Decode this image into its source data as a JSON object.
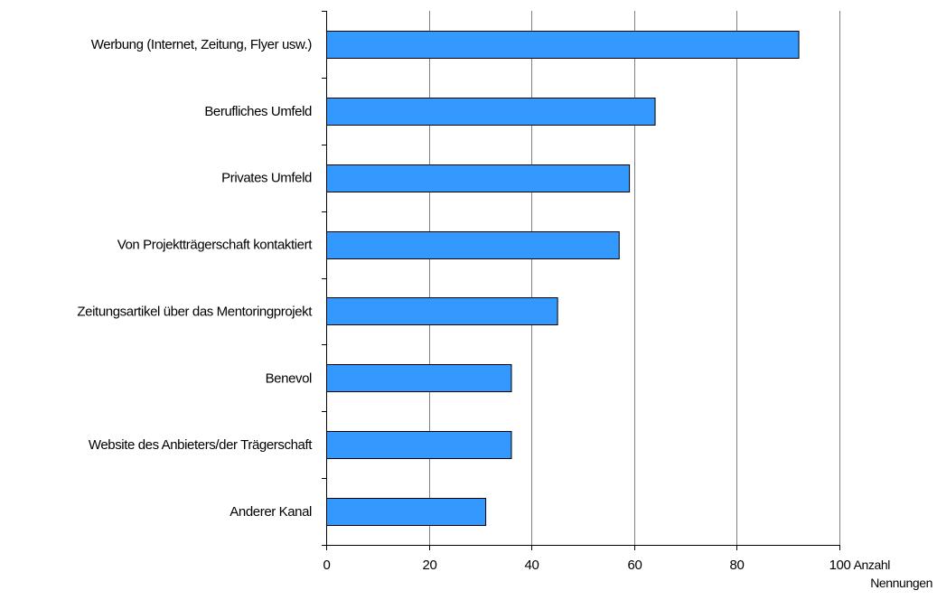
{
  "chart_data": {
    "type": "bar",
    "orientation": "horizontal",
    "categories": [
      "Werbung (Internet, Zeitung, Flyer usw.)",
      "Berufliches Umfeld",
      "Privates Umfeld",
      "Von Projektträgerschaft kontaktiert",
      "Zeitungsartikel über das Mentoringprojekt",
      "Benevol",
      "Website des Anbieters/der Trägerschaft",
      "Anderer Kanal"
    ],
    "values": [
      92,
      64,
      59,
      57,
      45,
      36,
      36,
      31
    ],
    "xlabel": [
      "Anzahl",
      "Nennungen"
    ],
    "ylabel": "",
    "xlim": [
      0,
      100
    ],
    "xticks": [
      0,
      20,
      40,
      60,
      80,
      100
    ],
    "grid": "vertical",
    "legend": "none",
    "colors": {
      "bar_fill": "#3399FF",
      "bar_stroke": "#000000",
      "gridline": "#808080",
      "axis": "#000000"
    }
  }
}
